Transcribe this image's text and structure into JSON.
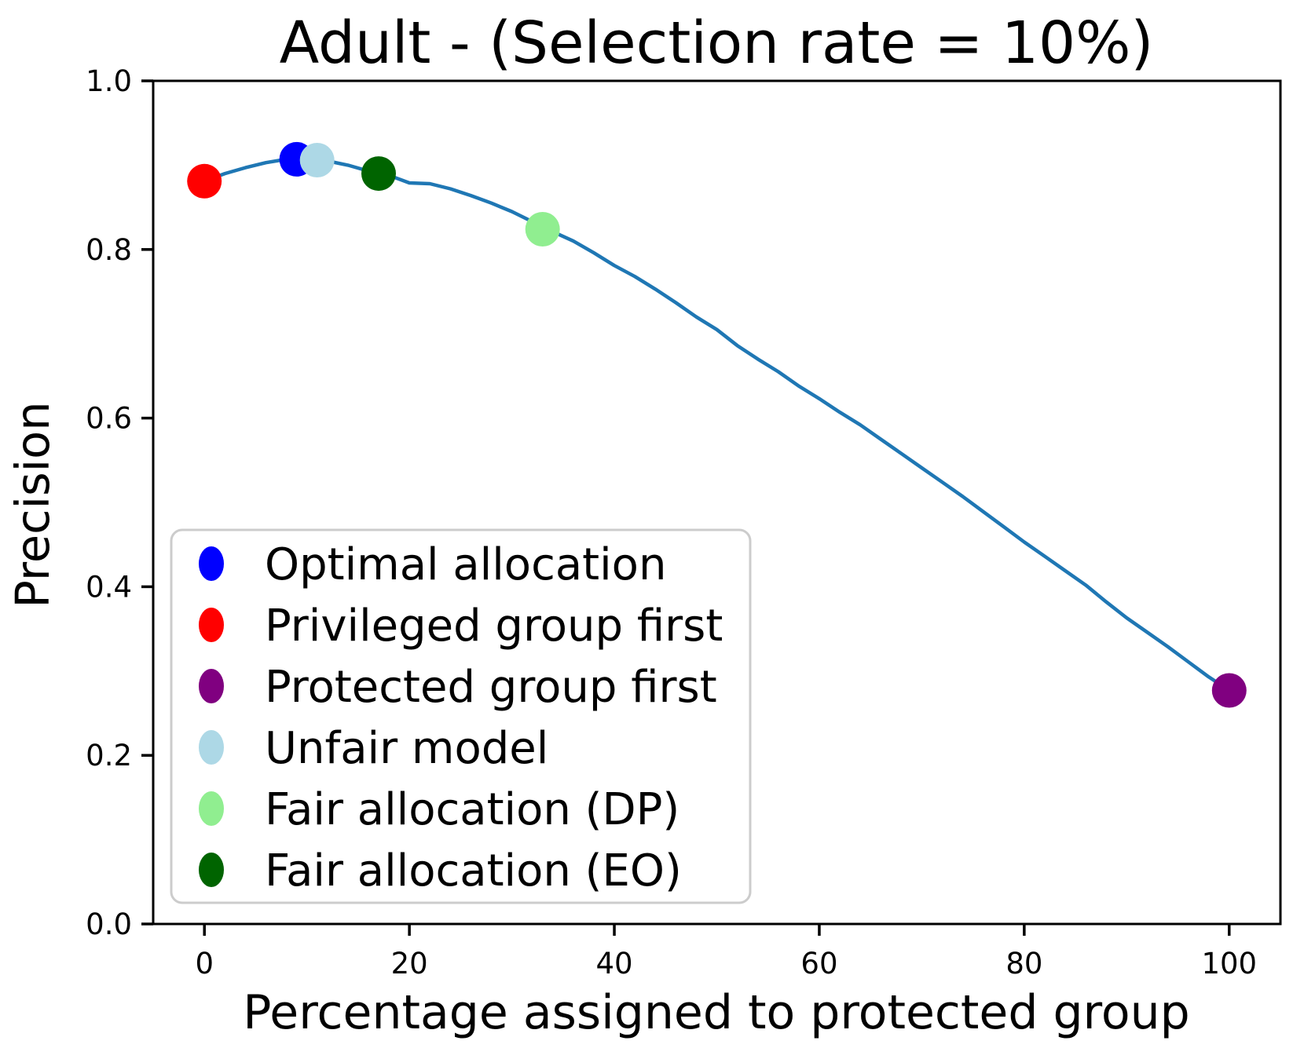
{
  "chart_data": {
    "type": "line",
    "title": "Adult - (Selection rate = 10%)",
    "xlabel": "Percentage assigned to protected group",
    "ylabel": "Precision",
    "xlim": [
      -5,
      105
    ],
    "ylim": [
      0.0,
      1.0
    ],
    "grid": false,
    "x_ticks": [
      0,
      20,
      40,
      60,
      80,
      100
    ],
    "x_tick_labels": [
      "0",
      "20",
      "40",
      "60",
      "80",
      "100"
    ],
    "y_ticks": [
      0.0,
      0.2,
      0.4,
      0.6,
      0.8,
      1.0
    ],
    "y_tick_labels": [
      "0.0",
      "0.2",
      "0.4",
      "0.6",
      "0.8",
      "1.0"
    ],
    "line_color": "#1f77b4",
    "line": {
      "x": [
        0,
        2,
        4,
        6,
        8,
        10,
        12,
        14,
        16,
        18,
        20,
        22,
        24,
        26,
        28,
        30,
        32,
        34,
        36,
        38,
        40,
        42,
        44,
        46,
        48,
        50,
        52,
        54,
        56,
        58,
        60,
        62,
        64,
        66,
        68,
        70,
        72,
        74,
        76,
        78,
        80,
        82,
        84,
        86,
        88,
        90,
        92,
        94,
        96,
        98,
        100
      ],
      "y": [
        0.881,
        0.89,
        0.897,
        0.903,
        0.907,
        0.907,
        0.905,
        0.9,
        0.893,
        0.888,
        0.879,
        0.878,
        0.872,
        0.864,
        0.855,
        0.845,
        0.833,
        0.821,
        0.81,
        0.796,
        0.781,
        0.768,
        0.753,
        0.737,
        0.72,
        0.705,
        0.686,
        0.67,
        0.655,
        0.638,
        0.623,
        0.607,
        0.592,
        0.575,
        0.558,
        0.541,
        0.524,
        0.507,
        0.489,
        0.471,
        0.453,
        0.436,
        0.419,
        0.402,
        0.382,
        0.363,
        0.346,
        0.329,
        0.311,
        0.293,
        0.277
      ]
    },
    "markers": [
      {
        "label": "Optimal allocation",
        "color": "#0000ff",
        "x": 9,
        "y": 0.907
      },
      {
        "label": "Privileged group first",
        "color": "#ff0000",
        "x": 0,
        "y": 0.881
      },
      {
        "label": "Protected group first",
        "color": "#800080",
        "x": 100,
        "y": 0.277
      },
      {
        "label": "Unfair model",
        "color": "#add8e6",
        "x": 11,
        "y": 0.906
      },
      {
        "label": "Fair allocation (DP)",
        "color": "#90ee90",
        "x": 33,
        "y": 0.824
      },
      {
        "label": "Fair allocation (EO)",
        "color": "#006400",
        "x": 17,
        "y": 0.89
      }
    ],
    "legend": {
      "position": "lower left",
      "entries": [
        {
          "label": "Optimal allocation",
          "color": "#0000ff"
        },
        {
          "label": "Privileged group first",
          "color": "#ff0000"
        },
        {
          "label": "Protected group first",
          "color": "#800080"
        },
        {
          "label": "Unfair model",
          "color": "#add8e6"
        },
        {
          "label": "Fair allocation (DP)",
          "color": "#90ee90"
        },
        {
          "label": "Fair allocation (EO)",
          "color": "#006400"
        }
      ]
    }
  }
}
